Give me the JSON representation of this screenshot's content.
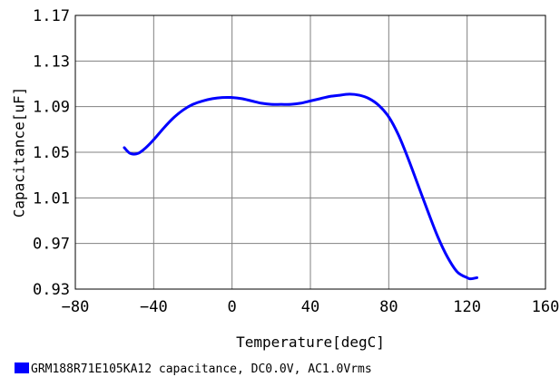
{
  "chart_data": {
    "type": "line",
    "xlabel": "Temperature[degC]",
    "ylabel": "Capacitance[uF]",
    "xlim": [
      -80,
      160
    ],
    "ylim": [
      0.93,
      1.17
    ],
    "x_ticks": [
      -80,
      -40,
      0,
      40,
      80,
      120,
      160
    ],
    "y_ticks": [
      0.93,
      0.97,
      1.01,
      1.05,
      1.09,
      1.13,
      1.17
    ],
    "x_tick_labels": [
      "−80",
      "−40",
      "0",
      "40",
      "80",
      "120",
      "160"
    ],
    "y_tick_labels": [
      "0.93",
      "0.97",
      "1.01",
      "1.05",
      "1.09",
      "1.13",
      "1.17"
    ],
    "grid": true,
    "legend_position": "bottom-left",
    "series": [
      {
        "name": "GRM188R71E105KA12 capacitance, DC0.0V, AC1.0Vrms",
        "color": "#0000ff",
        "x": [
          -55,
          -52,
          -48,
          -44,
          -40,
          -35,
          -30,
          -25,
          -20,
          -15,
          -10,
          -5,
          0,
          5,
          10,
          15,
          20,
          25,
          30,
          35,
          40,
          45,
          50,
          55,
          60,
          65,
          70,
          75,
          80,
          85,
          90,
          95,
          100,
          105,
          110,
          115,
          120,
          122,
          125
        ],
        "y": [
          1.054,
          1.049,
          1.049,
          1.054,
          1.061,
          1.071,
          1.08,
          1.087,
          1.092,
          1.095,
          1.097,
          1.098,
          1.098,
          1.097,
          1.095,
          1.093,
          1.092,
          1.092,
          1.092,
          1.093,
          1.095,
          1.097,
          1.099,
          1.1,
          1.101,
          1.1,
          1.097,
          1.091,
          1.081,
          1.065,
          1.044,
          1.021,
          0.998,
          0.976,
          0.958,
          0.945,
          0.94,
          0.939,
          0.94
        ]
      }
    ]
  }
}
